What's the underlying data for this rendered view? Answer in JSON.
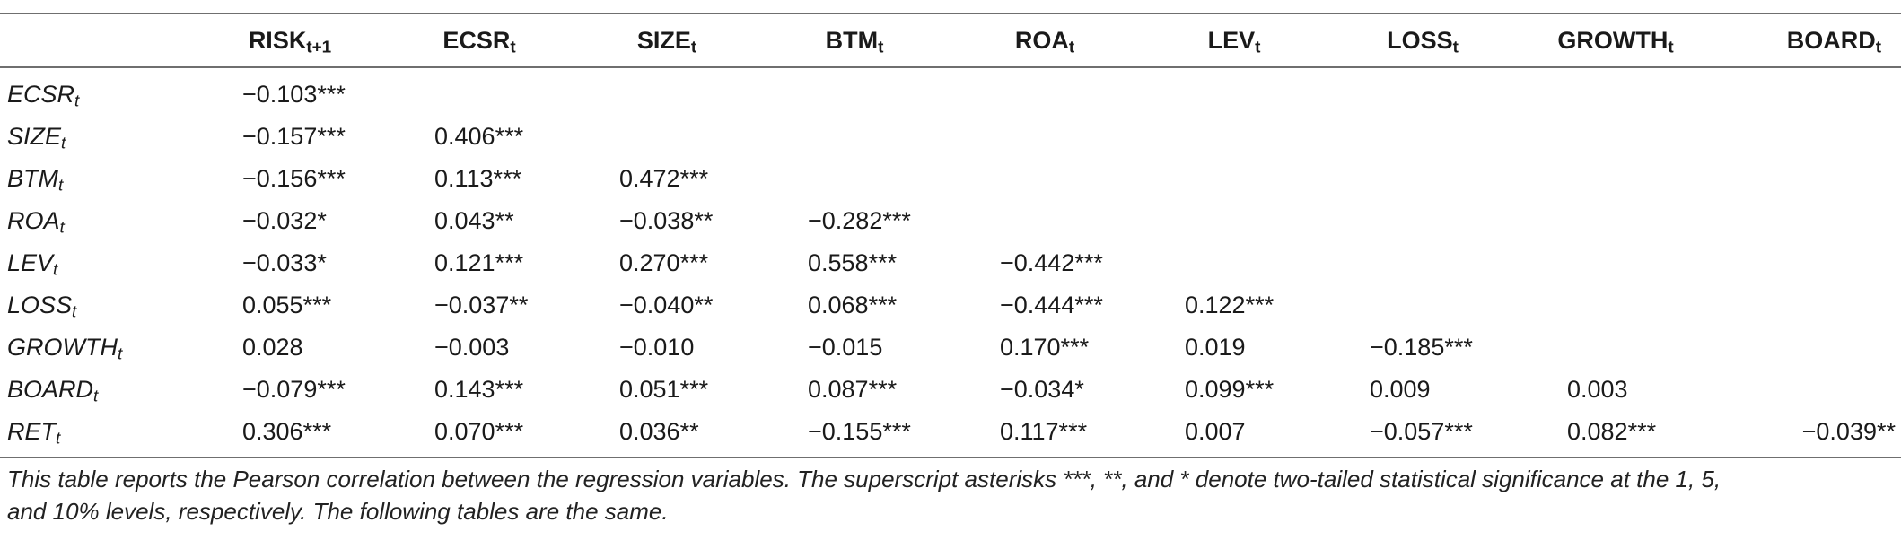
{
  "table": {
    "headers": [
      {
        "name": "",
        "sub": ""
      },
      {
        "name": "RISK",
        "sub": "t+1"
      },
      {
        "name": "ECSR",
        "sub": "t"
      },
      {
        "name": "SIZE",
        "sub": "t"
      },
      {
        "name": "BTM",
        "sub": "t"
      },
      {
        "name": "ROA",
        "sub": "t"
      },
      {
        "name": "LEV",
        "sub": "t"
      },
      {
        "name": "LOSS",
        "sub": "t"
      },
      {
        "name": "GROWTH",
        "sub": "t"
      },
      {
        "name": "BOARD",
        "sub": "t"
      }
    ],
    "rows": [
      {
        "name": "ECSR",
        "sub": "t",
        "cells": [
          "−0.103***",
          "",
          "",
          "",
          "",
          "",
          "",
          "",
          ""
        ]
      },
      {
        "name": "SIZE",
        "sub": "t",
        "cells": [
          "−0.157***",
          "0.406***",
          "",
          "",
          "",
          "",
          "",
          "",
          ""
        ]
      },
      {
        "name": "BTM",
        "sub": "t",
        "cells": [
          "−0.156***",
          "0.113***",
          "0.472***",
          "",
          "",
          "",
          "",
          "",
          ""
        ]
      },
      {
        "name": "ROA",
        "sub": "t",
        "cells": [
          "−0.032*",
          "0.043**",
          "−0.038**",
          "−0.282***",
          "",
          "",
          "",
          "",
          ""
        ]
      },
      {
        "name": "LEV",
        "sub": "t",
        "cells": [
          "−0.033*",
          "0.121***",
          "0.270***",
          "0.558***",
          "−0.442***",
          "",
          "",
          "",
          ""
        ]
      },
      {
        "name": "LOSS",
        "sub": "t",
        "cells": [
          "0.055***",
          "−0.037**",
          "−0.040**",
          "0.068***",
          "−0.444***",
          "0.122***",
          "",
          "",
          ""
        ]
      },
      {
        "name": "GROWTH",
        "sub": "t",
        "cells": [
          "0.028",
          "−0.003",
          "−0.010",
          "−0.015",
          "0.170***",
          "0.019",
          "−0.185***",
          "",
          ""
        ]
      },
      {
        "name": "BOARD",
        "sub": "t",
        "cells": [
          "−0.079***",
          "0.143***",
          "0.051***",
          "0.087***",
          "−0.034*",
          "0.099***",
          "0.009",
          "0.003",
          ""
        ]
      },
      {
        "name": "RET",
        "sub": "t",
        "cells": [
          "0.306***",
          "0.070***",
          "0.036**",
          "−0.155***",
          "0.117***",
          "0.007",
          "−0.057***",
          "0.082***",
          "−0.039**"
        ]
      }
    ]
  },
  "note": {
    "line1": "This table reports the Pearson correlation between the regression variables. The superscript asterisks ***, **, and * denote two-tailed statistical significance at the 1, 5,",
    "line2": "and 10% levels, respectively. The following tables are the same."
  }
}
